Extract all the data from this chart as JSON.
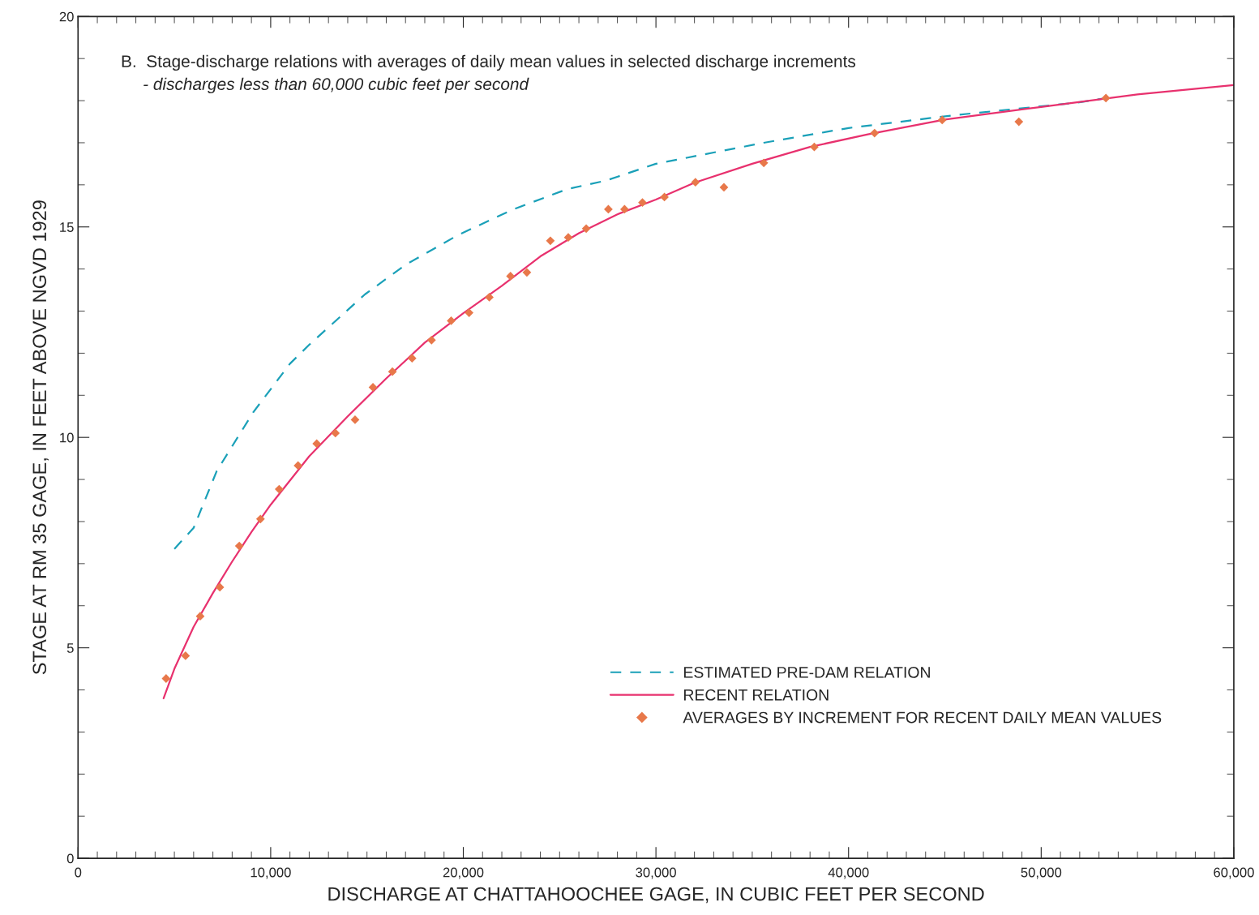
{
  "chart_data": {
    "type": "line",
    "title": "B.  Stage-discharge relations with averages of daily mean values in selected discharge increments",
    "subtitle": "- discharges less than 60,000 cubic feet per second",
    "xlabel": "DISCHARGE AT CHATTAHOOCHEE GAGE, IN CUBIC FEET PER SECOND",
    "ylabel": "STAGE AT RM 35 GAGE, IN FEET ABOVE NGVD 1929",
    "xlim": [
      0,
      60000
    ],
    "ylim": [
      0,
      20
    ],
    "xticks": [
      {
        "value": 0,
        "label": "0"
      },
      {
        "value": 10000,
        "label": "10,000"
      },
      {
        "value": 20000,
        "label": "20,000"
      },
      {
        "value": 30000,
        "label": "30,000"
      },
      {
        "value": 40000,
        "label": "40,000"
      },
      {
        "value": 50000,
        "label": "50,000"
      },
      {
        "value": 60000,
        "label": "60,000"
      }
    ],
    "yticks": [
      0,
      5,
      10,
      15,
      20
    ],
    "grid": false,
    "legend": "bottom right",
    "series": [
      {
        "name": "ESTIMATED PRE-DAM RELATION",
        "line_style": "dashed",
        "marker": "none",
        "color": "#1aa0b8",
        "x": [
          5000,
          6000,
          7200,
          9100,
          11000,
          12000,
          14900,
          17000,
          19700,
          22500,
          25400,
          27400,
          30000,
          35600,
          40000,
          45400,
          51800,
          53400
        ],
        "values": [
          7.35,
          7.85,
          9.2,
          10.6,
          11.75,
          12.2,
          13.4,
          14.1,
          14.8,
          15.4,
          15.9,
          16.1,
          16.5,
          17.0,
          17.35,
          17.65,
          17.95,
          18.06
        ]
      },
      {
        "name": "RECENT RELATION",
        "line_style": "solid",
        "marker": "none",
        "color": "#e8316e",
        "x": [
          4440,
          5000,
          6000,
          7000,
          8000,
          9000,
          10000,
          12000,
          14000,
          16000,
          18000,
          20000,
          22000,
          24000,
          26000,
          28000,
          30000,
          32000,
          35000,
          38000,
          41000,
          45000,
          50000,
          55000,
          60000
        ],
        "values": [
          3.8,
          4.5,
          5.5,
          6.3,
          7.05,
          7.75,
          8.4,
          9.55,
          10.5,
          11.4,
          12.25,
          12.95,
          13.6,
          14.3,
          14.85,
          15.3,
          15.65,
          16.05,
          16.5,
          16.9,
          17.2,
          17.55,
          17.85,
          18.15,
          18.37
        ]
      },
      {
        "name": "AVERAGES BY INCREMENT FOR RECENT DAILY MEAN VALUES",
        "type": "scatter",
        "marker": "diamond",
        "color": "#e8784a",
        "x": [
          4570,
          5580,
          6340,
          7360,
          8370,
          9470,
          10440,
          11420,
          12390,
          13360,
          14380,
          15310,
          16320,
          17340,
          18350,
          19370,
          20300,
          21350,
          22450,
          23300,
          24520,
          25450,
          26380,
          27530,
          28370,
          29300,
          30440,
          32050,
          33530,
          35600,
          38220,
          41350,
          44860,
          48840,
          53360
        ],
        "values": [
          4.27,
          4.81,
          5.75,
          6.44,
          7.42,
          8.06,
          8.77,
          9.33,
          9.85,
          10.1,
          10.42,
          11.19,
          11.56,
          11.88,
          12.31,
          12.77,
          12.96,
          13.33,
          13.83,
          13.92,
          14.67,
          14.75,
          14.96,
          15.42,
          15.42,
          15.58,
          15.71,
          16.06,
          15.94,
          16.52,
          16.9,
          17.23,
          17.54,
          17.5,
          18.06
        ]
      }
    ]
  }
}
